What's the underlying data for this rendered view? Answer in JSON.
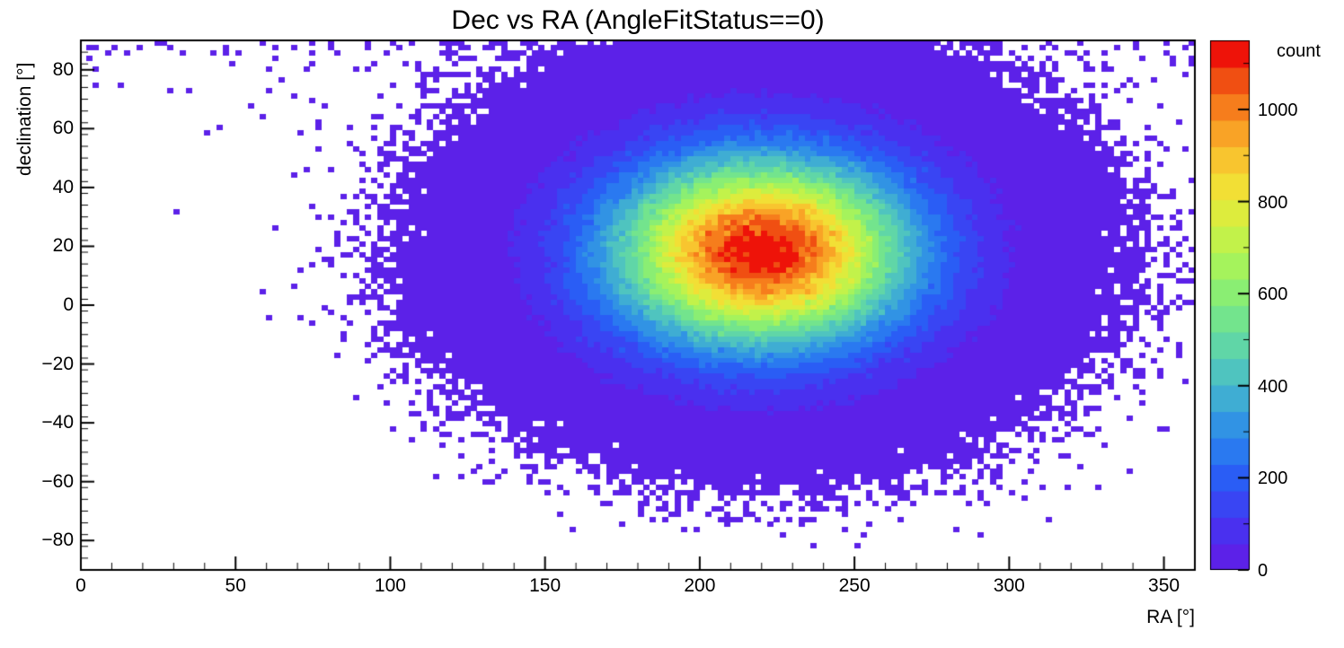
{
  "chart_data": {
    "type": "heatmap",
    "title": "Dec vs RA (AngleFitStatus==0)",
    "xlabel": "RA [°]",
    "ylabel": "declination [°]",
    "colorbar_label": "count",
    "xlim": [
      0,
      360
    ],
    "ylim": [
      -90,
      90
    ],
    "zlim": [
      0,
      1150
    ],
    "x_ticks": [
      0,
      50,
      100,
      150,
      200,
      250,
      300,
      350
    ],
    "x_minor_step": 10,
    "y_ticks": [
      -80,
      -60,
      -40,
      -20,
      0,
      20,
      40,
      60,
      80
    ],
    "y_minor_step": 4,
    "z_ticks": [
      0,
      200,
      400,
      600,
      800,
      1000
    ],
    "z_minor_step": 100,
    "grid": false,
    "legend_position": "right",
    "bins": {
      "ra": 180,
      "dec": 100
    },
    "distribution": {
      "model": "gaussian2d_poisson",
      "signal": {
        "center_ra": 220,
        "center_dec": 18,
        "sigma_ra": 33,
        "sigma_dec": 22,
        "peak_count": 1150
      },
      "polar_scatter": {
        "amplitude": 0.2,
        "dec_scale": 10
      }
    },
    "palette": [
      "#5c21e8",
      "#4a30ef",
      "#3945f3",
      "#2a5df5",
      "#2a79f0",
      "#3193e4",
      "#3fadd3",
      "#4fc4bf",
      "#60d6a7",
      "#73e48d",
      "#8aee73",
      "#a5f35c",
      "#c2f24a",
      "#ddec3d",
      "#f2df35",
      "#f8c52f",
      "#f9a326",
      "#f67d1c",
      "#f04f12",
      "#ee1309"
    ],
    "frame_color": "#000000",
    "background_color": "#ffffff"
  }
}
